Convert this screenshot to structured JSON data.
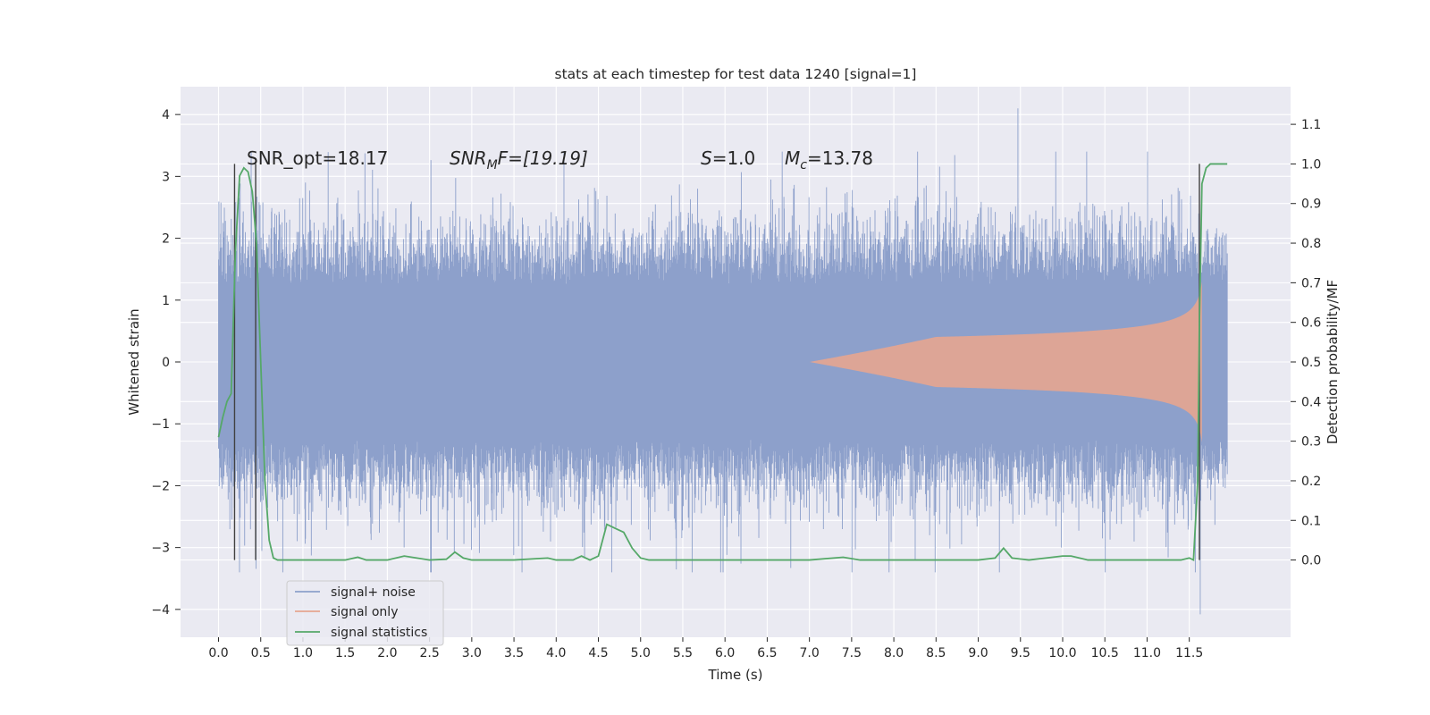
{
  "chart_data": {
    "type": "line",
    "title": "stats at each timestep for test data 1240 [signal=1]",
    "xlabel": "Time (s)",
    "ylabel_left": "Whitened strain",
    "ylabel_right": "Detection probability/MF",
    "xlim": [
      -0.45,
      12.7
    ],
    "ylim_left": [
      -4.45,
      4.45
    ],
    "ylim_right": [
      -0.195,
      1.195
    ],
    "x_ticks": [
      "0.0",
      "0.5",
      "1.0",
      "1.5",
      "2.0",
      "2.5",
      "3.0",
      "3.5",
      "4.0",
      "4.5",
      "5.0",
      "5.5",
      "6.0",
      "6.5",
      "7.0",
      "7.5",
      "8.0",
      "8.5",
      "9.0",
      "9.5",
      "10.0",
      "10.5",
      "11.0",
      "11.5"
    ],
    "x_tick_values": [
      0,
      0.5,
      1,
      1.5,
      2,
      2.5,
      3,
      3.5,
      4,
      4.5,
      5,
      5.5,
      6,
      6.5,
      7,
      7.5,
      8,
      8.5,
      9,
      9.5,
      10,
      10.5,
      11,
      11.5
    ],
    "y_ticks_left": [
      "−4",
      "−3",
      "−2",
      "−1",
      "0",
      "1",
      "2",
      "3",
      "4"
    ],
    "y_tick_values_left": [
      -4,
      -3,
      -2,
      -1,
      0,
      1,
      2,
      3,
      4
    ],
    "y_ticks_right": [
      "0.0",
      "0.1",
      "0.2",
      "0.3",
      "0.4",
      "0.5",
      "0.6",
      "0.7",
      "0.8",
      "0.9",
      "1.0",
      "1.1"
    ],
    "y_tick_values_right": [
      0,
      0.1,
      0.2,
      0.3,
      0.4,
      0.5,
      0.6,
      0.7,
      0.8,
      0.9,
      1.0,
      1.1
    ],
    "grid": true,
    "legend_position": "lower-left",
    "series": [
      {
        "name": "signal+ noise",
        "axis": "left",
        "color": "#8da0cb",
        "x_range": [
          0.0,
          11.95
        ],
        "envelope_typical": [
          -1.6,
          1.6
        ],
        "extremes": {
          "max": 4.1,
          "min": -4.08,
          "x_at_max": 9.47,
          "x_at_min": 11.63
        }
      },
      {
        "name": "signal only",
        "axis": "left",
        "color": "#e5a590",
        "x_range": [
          7.0,
          11.65
        ],
        "peak_amplitude": 1.3,
        "x_at_peak": 11.65
      },
      {
        "name": "signal statistics",
        "axis": "right",
        "color": "#55a868",
        "x": [
          0.0,
          0.05,
          0.1,
          0.15,
          0.2,
          0.25,
          0.3,
          0.35,
          0.4,
          0.45,
          0.5,
          0.55,
          0.6,
          0.65,
          0.7,
          1.0,
          1.5,
          1.65,
          1.75,
          2.0,
          2.2,
          2.5,
          2.7,
          2.8,
          2.9,
          3.0,
          3.5,
          3.9,
          4.0,
          4.2,
          4.3,
          4.4,
          4.5,
          4.6,
          4.7,
          4.8,
          4.9,
          5.0,
          5.1,
          5.5,
          6.0,
          7.0,
          7.4,
          7.6,
          8.0,
          9.0,
          9.2,
          9.3,
          9.4,
          9.6,
          9.8,
          10.0,
          10.1,
          10.3,
          11.0,
          11.4,
          11.5,
          11.55,
          11.6,
          11.62,
          11.65,
          11.7,
          11.75,
          11.8,
          11.85,
          11.95
        ],
        "y": [
          0.31,
          0.36,
          0.4,
          0.42,
          0.78,
          0.97,
          0.99,
          0.98,
          0.93,
          0.8,
          0.5,
          0.2,
          0.05,
          0.005,
          0.0,
          0.0,
          0.0,
          0.007,
          0.0,
          0.0,
          0.01,
          0.0,
          0.002,
          0.02,
          0.005,
          0.0,
          0.0,
          0.005,
          0.0,
          0.0,
          0.01,
          0.0,
          0.01,
          0.09,
          0.08,
          0.07,
          0.03,
          0.005,
          0.0,
          0.0,
          0.0,
          0.0,
          0.007,
          0.0,
          0.0,
          0.0,
          0.005,
          0.03,
          0.005,
          0.0,
          0.005,
          0.01,
          0.01,
          0.0,
          0.0,
          0.0,
          0.005,
          0.0,
          0.2,
          0.6,
          0.95,
          0.99,
          1.0,
          1.0,
          1.0,
          1.0
        ]
      }
    ],
    "vertical_lines": [
      {
        "x": 0.19,
        "y_from": 0.0,
        "y_to": 1.0,
        "color": "#404040"
      },
      {
        "x": 0.44,
        "y_from": 0.0,
        "y_to": 1.0,
        "color": "#404040"
      },
      {
        "x": 11.62,
        "y_from": 0.0,
        "y_to": 1.0,
        "color": "#404040"
      }
    ],
    "annotations": [
      {
        "id": "snr_opt",
        "text": "SNR_opt=18.17"
      },
      {
        "id": "snr_mf",
        "base": "SNR",
        "sub": "M",
        "rest": "F=[19.19]"
      },
      {
        "id": "s_val",
        "italic": "S",
        "rest": "=1.0"
      },
      {
        "id": "mc_val",
        "base": "M",
        "sub": "c",
        "rest": "=13.78"
      }
    ]
  }
}
